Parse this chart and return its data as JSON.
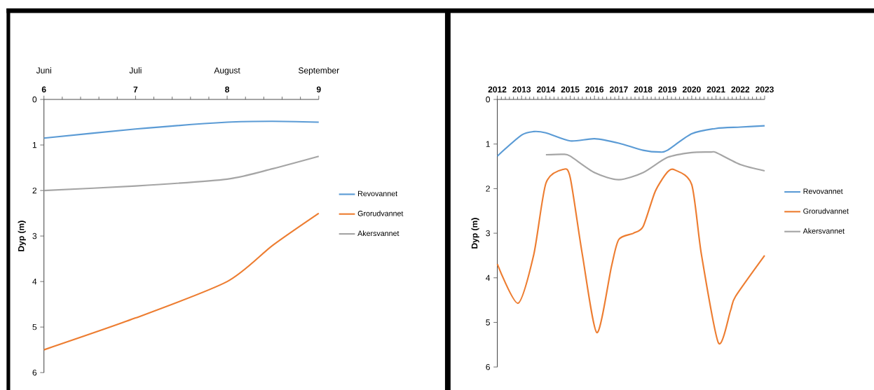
{
  "chart_data": [
    {
      "type": "line",
      "ylabel": "Dyp (m)",
      "xlim": [
        6,
        9
      ],
      "xticks": [
        6,
        7,
        8,
        9
      ],
      "annotations": [
        "Juni",
        "Juli",
        "August",
        "September"
      ],
      "ylim": [
        6,
        0
      ],
      "yticks": [
        0,
        1,
        2,
        3,
        4,
        5,
        6
      ],
      "legend": "right",
      "series": [
        {
          "name": "Revovannet",
          "color": "#5b9bd5",
          "x": [
            6,
            7,
            8,
            8.5,
            9
          ],
          "values": [
            0.85,
            0.65,
            0.5,
            0.48,
            0.5
          ]
        },
        {
          "name": "Grorudvannet",
          "color": "#ed7d31",
          "x": [
            6,
            7,
            8,
            8.5,
            9
          ],
          "values": [
            5.5,
            4.8,
            4.0,
            3.2,
            2.5
          ]
        },
        {
          "name": "Akersvannet",
          "color": "#a5a5a5",
          "x": [
            6,
            7,
            8,
            8.5,
            9
          ],
          "values": [
            2.0,
            1.9,
            1.75,
            1.52,
            1.25
          ]
        }
      ]
    },
    {
      "type": "line",
      "ylabel": "Dyp (m)",
      "xlim": [
        2012,
        2023
      ],
      "xticks": [
        2012,
        2013,
        2014,
        2015,
        2016,
        2017,
        2018,
        2019,
        2020,
        2021,
        2022,
        2023
      ],
      "ylim": [
        6,
        0
      ],
      "yticks": [
        0,
        1,
        2,
        3,
        4,
        5,
        6
      ],
      "legend": "right",
      "series": [
        {
          "name": "Revovannet",
          "color": "#5b9bd5",
          "x": [
            2012,
            2013,
            2013.5,
            2014,
            2015,
            2016,
            2017,
            2018,
            2018.7,
            2019,
            2020,
            2021,
            2022,
            2023
          ],
          "values": [
            1.27,
            0.8,
            0.72,
            0.75,
            0.93,
            0.88,
            0.98,
            1.14,
            1.18,
            1.14,
            0.77,
            0.65,
            0.62,
            0.59
          ]
        },
        {
          "name": "Grorudvannet",
          "color": "#ed7d31",
          "x": [
            2012,
            2012.85,
            2013.5,
            2014,
            2014.7,
            2015,
            2015.5,
            2016.1,
            2016.7,
            2017,
            2017.6,
            2018,
            2018.5,
            2019,
            2019.3,
            2020,
            2020.4,
            2021.1,
            2021.6,
            2021.8,
            2023
          ],
          "values": [
            3.69,
            4.57,
            3.48,
            1.88,
            1.57,
            1.75,
            3.48,
            5.23,
            3.74,
            3.14,
            3.0,
            2.85,
            2.06,
            1.63,
            1.58,
            1.91,
            3.48,
            5.46,
            4.73,
            4.42,
            3.5
          ]
        },
        {
          "name": "Akersvannet",
          "color": "#a5a5a5",
          "x": [
            2014,
            2014.7,
            2015,
            2016,
            2017,
            2018,
            2019,
            2020,
            2020.8,
            2021,
            2022,
            2023
          ],
          "values": [
            1.24,
            1.23,
            1.27,
            1.64,
            1.8,
            1.64,
            1.3,
            1.19,
            1.18,
            1.19,
            1.46,
            1.6
          ]
        }
      ]
    }
  ]
}
